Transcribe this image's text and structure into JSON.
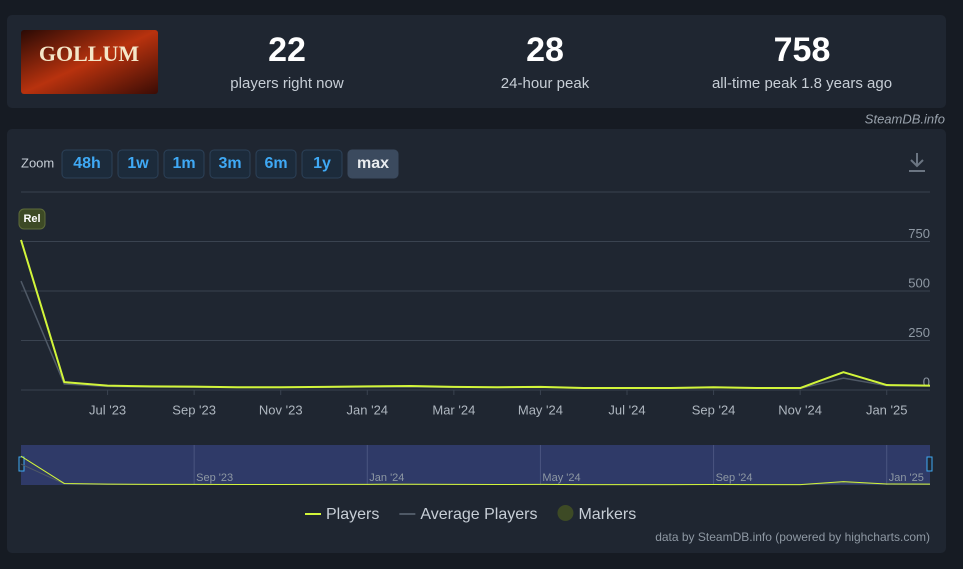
{
  "header": {
    "logo": "GOLLUM",
    "stats": [
      {
        "value": 22,
        "label": "players right now"
      },
      {
        "value": 28,
        "label": "24-hour peak"
      },
      {
        "value": 758,
        "label": "all-time peak 1.8 years ago"
      }
    ],
    "source": "SteamDB.info"
  },
  "zoom": {
    "label": "Zoom",
    "buttons": [
      "48h",
      "1w",
      "1m",
      "3m",
      "6m",
      "1y",
      "max"
    ],
    "active": "max"
  },
  "chart_data": {
    "type": "line",
    "x": [
      "2023-05",
      "2023-06",
      "2023-07",
      "2023-08",
      "2023-09",
      "2023-10",
      "2023-11",
      "2023-12",
      "2024-01",
      "2024-02",
      "2024-03",
      "2024-04",
      "2024-05",
      "2024-06",
      "2024-07",
      "2024-08",
      "2024-09",
      "2024-10",
      "2024-11",
      "2024-12",
      "2025-01",
      "2025-02"
    ],
    "series": [
      {
        "name": "Players",
        "color": "#d2f53a",
        "values": [
          758,
          40,
          22,
          18,
          17,
          14,
          14,
          16,
          18,
          20,
          16,
          14,
          16,
          10,
          10,
          10,
          14,
          10,
          10,
          90,
          25,
          22
        ]
      },
      {
        "name": "Average Players",
        "color": "#4f5966",
        "values": [
          550,
          30,
          18,
          15,
          14,
          12,
          12,
          13,
          15,
          16,
          13,
          12,
          13,
          9,
          9,
          9,
          12,
          9,
          8,
          60,
          22,
          20
        ]
      }
    ],
    "xlim": [
      "2023-05",
      "2025-02"
    ],
    "ylim": [
      0,
      1000
    ],
    "yticks": [
      0,
      250,
      500,
      750
    ],
    "xticks": [
      {
        "value": "2023-07",
        "label": "Jul '23"
      },
      {
        "value": "2023-09",
        "label": "Sep '23"
      },
      {
        "value": "2023-11",
        "label": "Nov '23"
      },
      {
        "value": "2024-01",
        "label": "Jan '24"
      },
      {
        "value": "2024-03",
        "label": "Mar '24"
      },
      {
        "value": "2024-05",
        "label": "May '24"
      },
      {
        "value": "2024-07",
        "label": "Jul '24"
      },
      {
        "value": "2024-09",
        "label": "Sep '24"
      },
      {
        "value": "2024-11",
        "label": "Nov '24"
      },
      {
        "value": "2025-01",
        "label": "Jan '25"
      }
    ],
    "grid": true,
    "markers": {
      "name": "Markers",
      "color": "#3d4a25",
      "items": [
        {
          "label": "Rel",
          "x": "2023-05"
        }
      ]
    },
    "navigator": {
      "xticks": [
        {
          "value": "2023-09",
          "label": "Sep '23"
        },
        {
          "value": "2024-01",
          "label": "Jan '24"
        },
        {
          "value": "2024-05",
          "label": "May '24"
        },
        {
          "value": "2024-09",
          "label": "Sep '24"
        },
        {
          "value": "2025-01",
          "label": "Jan '25"
        }
      ]
    },
    "credits": "data by SteamDB.info (powered by highcharts.com)"
  }
}
